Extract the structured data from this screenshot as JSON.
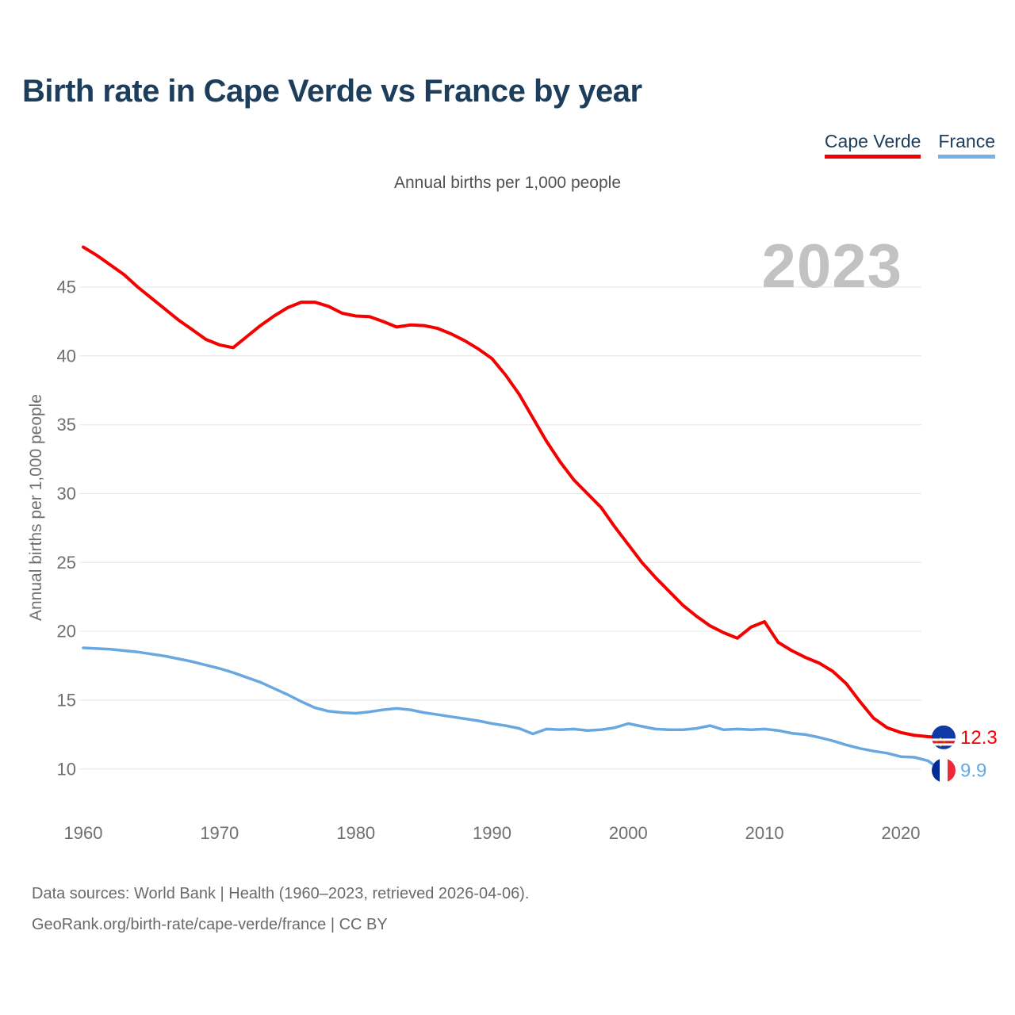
{
  "page": {
    "title": "Birth rate in Cape Verde vs France by year",
    "subtitle": "Annual births per 1,000 people",
    "watermark": "2023",
    "footer": {
      "line1": "Data sources: World Bank | Health (1960–2023, retrieved 2026-04-06).",
      "line2": "GeoRank.org/birth-rate/cape-verde/france | CC BY"
    }
  },
  "legend": {
    "items": [
      {
        "label": "Cape Verde",
        "color": "#f40000"
      },
      {
        "label": "France",
        "color": "#74b2e6"
      }
    ]
  },
  "chart_data": {
    "type": "line",
    "title": "Birth rate in Cape Verde vs France by year",
    "ylabel": "Annual births per 1,000 people",
    "xlabel": "",
    "grid": "horizontal",
    "legend_position": "top-right",
    "xlim": [
      1960,
      2023
    ],
    "ylim": [
      9,
      48.5
    ],
    "x_ticks": [
      1960,
      1970,
      1980,
      1990,
      2000,
      2010,
      2020
    ],
    "y_ticks": [
      45,
      40,
      35,
      30,
      25,
      20,
      15,
      10
    ],
    "x": [
      1960,
      1961,
      1962,
      1963,
      1964,
      1965,
      1966,
      1967,
      1968,
      1969,
      1970,
      1971,
      1972,
      1973,
      1974,
      1975,
      1976,
      1977,
      1978,
      1979,
      1980,
      1981,
      1982,
      1983,
      1984,
      1985,
      1986,
      1987,
      1988,
      1989,
      1990,
      1991,
      1992,
      1993,
      1994,
      1995,
      1996,
      1997,
      1998,
      1999,
      2000,
      2001,
      2002,
      2003,
      2004,
      2005,
      2006,
      2007,
      2008,
      2009,
      2010,
      2011,
      2012,
      2013,
      2014,
      2015,
      2016,
      2017,
      2018,
      2019,
      2020,
      2021,
      2022,
      2023
    ],
    "series": [
      {
        "name": "Cape Verde",
        "color": "#f40000",
        "end_label": "12.3",
        "end_value": 12.3,
        "values": [
          47.9,
          47.3,
          46.6,
          45.9,
          45.0,
          44.2,
          43.4,
          42.6,
          41.9,
          41.2,
          40.8,
          40.6,
          41.4,
          42.2,
          42.9,
          43.5,
          43.9,
          43.9,
          43.6,
          43.1,
          42.9,
          42.85,
          42.5,
          42.1,
          42.25,
          42.2,
          42.0,
          41.6,
          41.1,
          40.5,
          39.8,
          38.6,
          37.2,
          35.5,
          33.8,
          32.3,
          31.0,
          30.0,
          29.0,
          27.6,
          26.3,
          25.0,
          23.9,
          22.9,
          21.9,
          21.1,
          20.4,
          19.9,
          19.5,
          20.3,
          20.7,
          19.2,
          18.6,
          18.1,
          17.7,
          17.1,
          16.2,
          14.9,
          13.7,
          13.0,
          12.65,
          12.45,
          12.35,
          12.3
        ]
      },
      {
        "name": "France",
        "color": "#68a8e0",
        "end_label": "9.9",
        "end_value": 9.9,
        "values": [
          18.8,
          18.75,
          18.7,
          18.6,
          18.5,
          18.35,
          18.2,
          18.0,
          17.8,
          17.55,
          17.3,
          17.0,
          16.65,
          16.3,
          15.85,
          15.4,
          14.9,
          14.45,
          14.2,
          14.1,
          14.05,
          14.15,
          14.3,
          14.4,
          14.3,
          14.1,
          13.95,
          13.8,
          13.65,
          13.5,
          13.3,
          13.15,
          12.95,
          12.55,
          12.9,
          12.85,
          12.9,
          12.8,
          12.85,
          13.0,
          13.3,
          13.1,
          12.9,
          12.85,
          12.85,
          12.95,
          13.15,
          12.85,
          12.9,
          12.85,
          12.9,
          12.8,
          12.6,
          12.5,
          12.3,
          12.05,
          11.75,
          11.5,
          11.3,
          11.15,
          10.9,
          10.85,
          10.6,
          9.9
        ]
      }
    ]
  }
}
